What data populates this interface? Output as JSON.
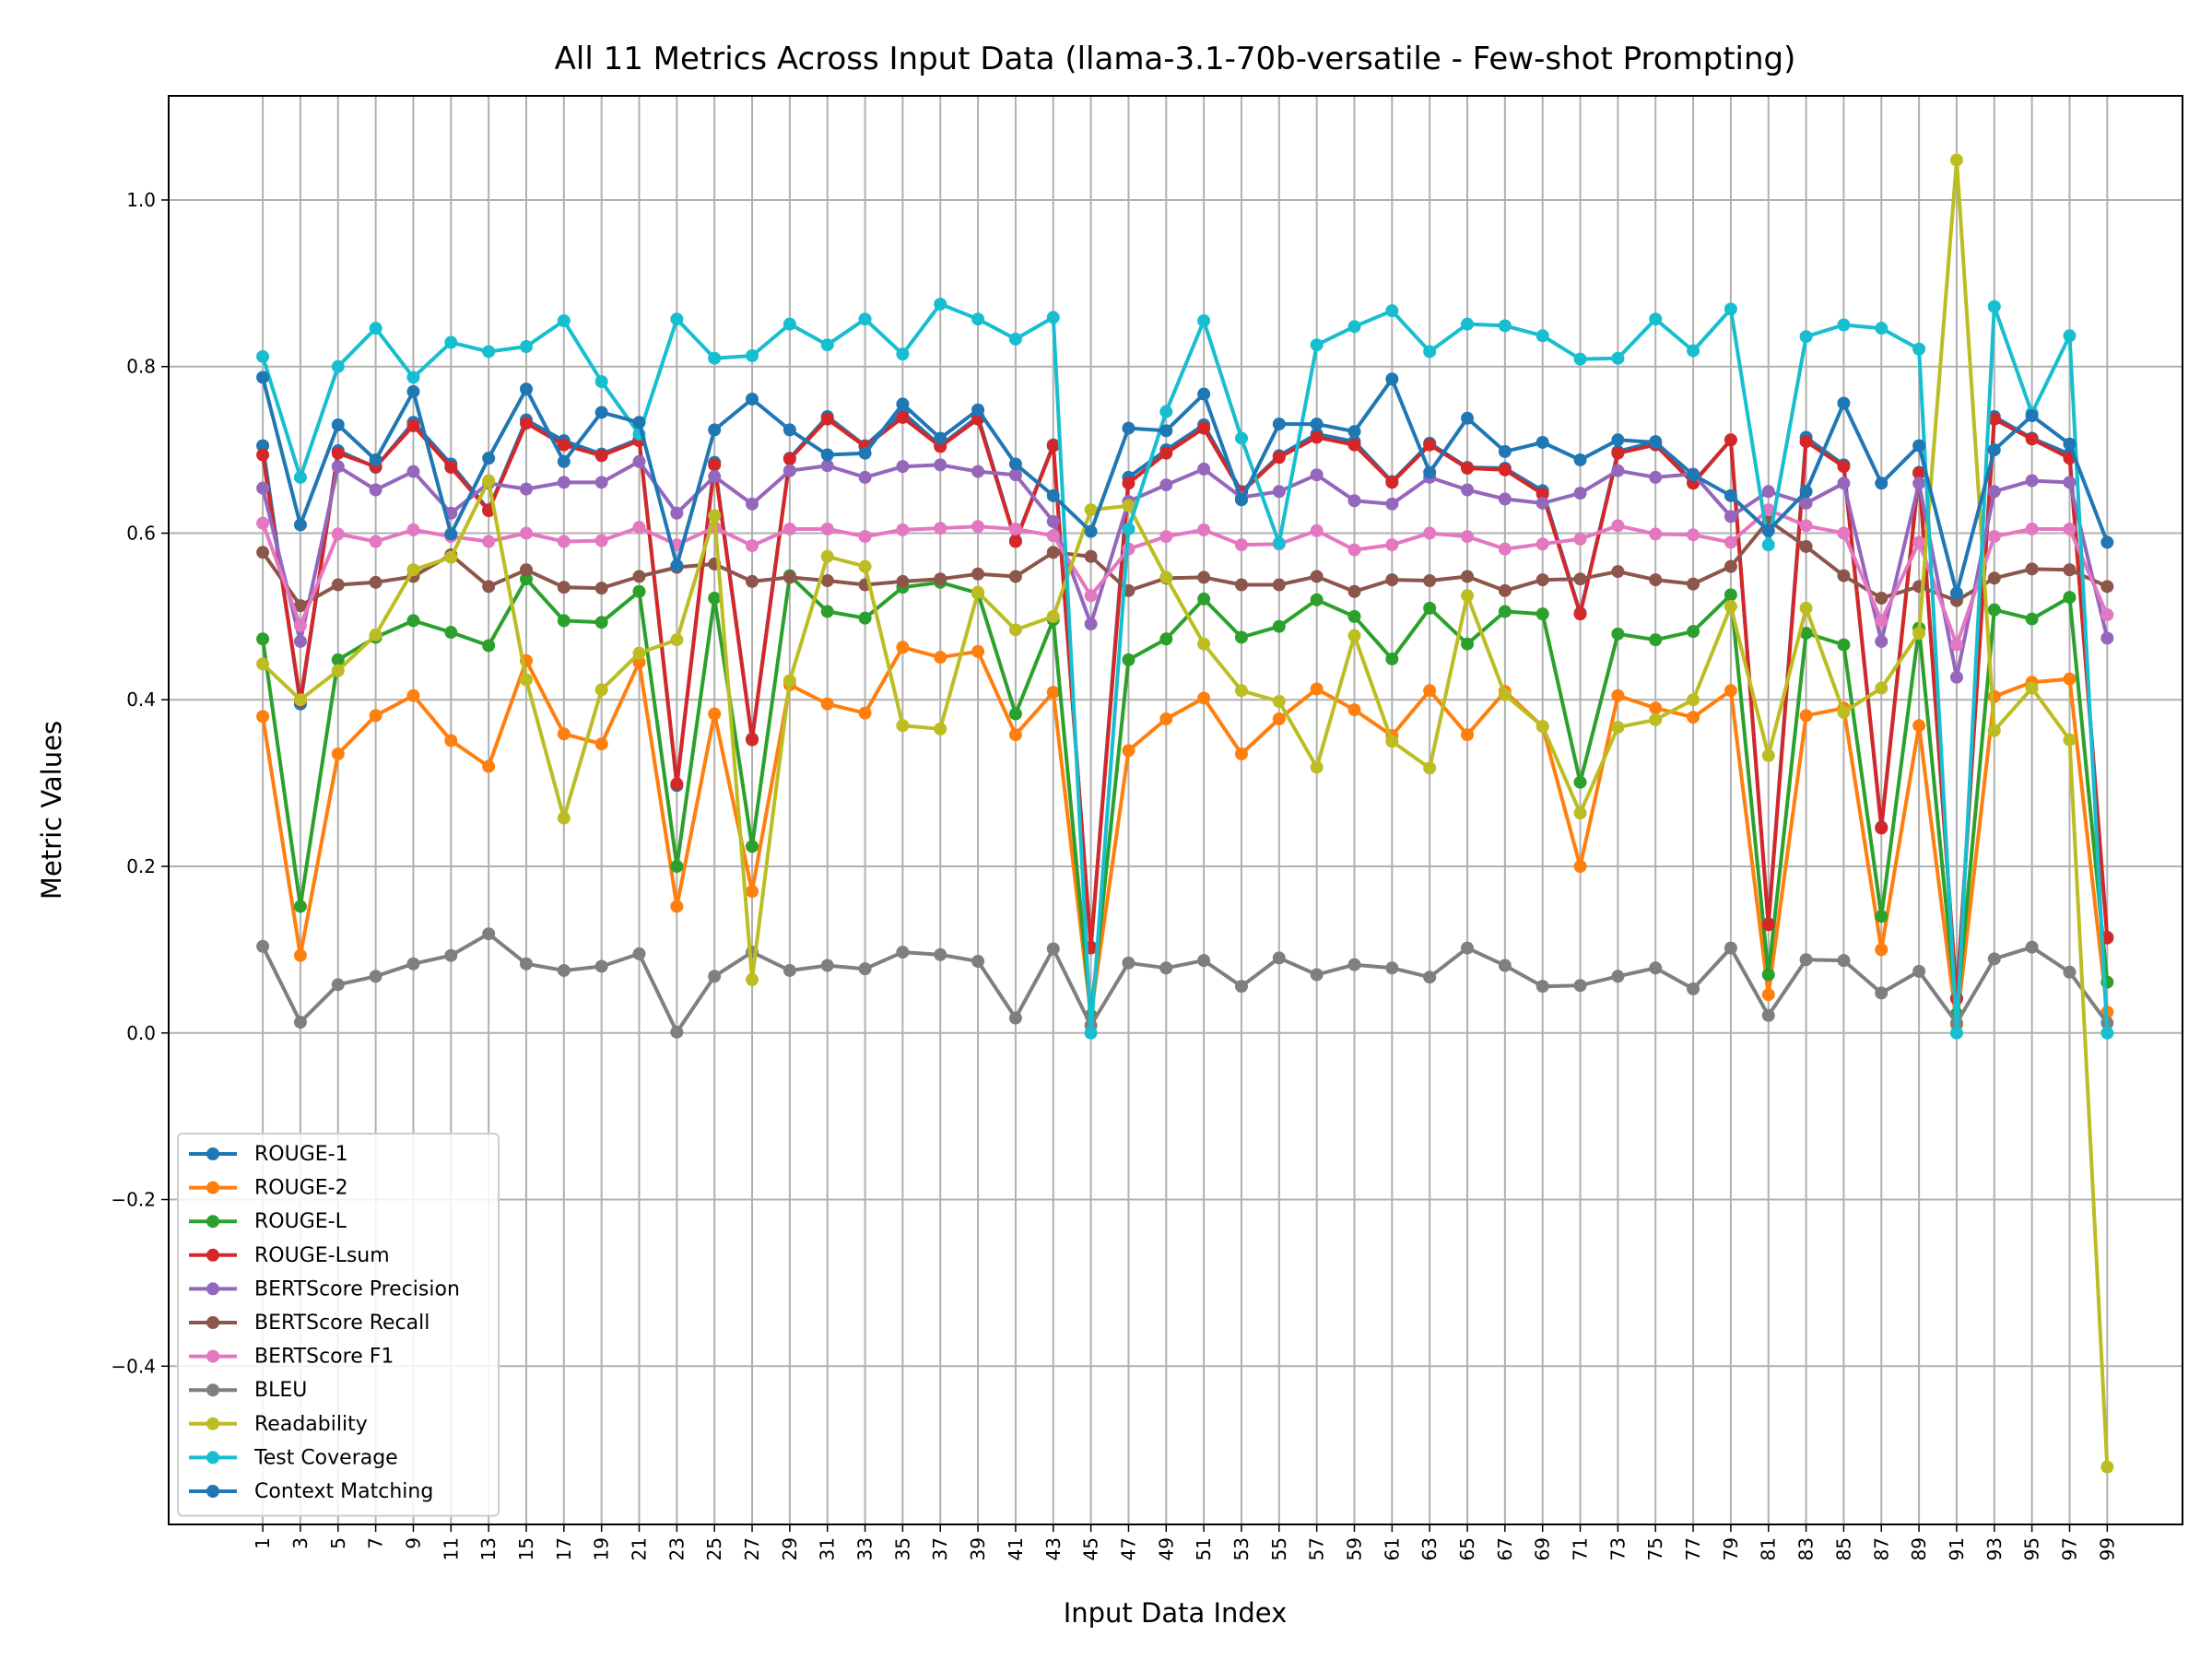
{
  "chart_data": {
    "type": "line",
    "title": "All 11 Metrics Across Input Data (llama-3.1-70b-versatile - Few-shot Prompting)",
    "xlabel": "Input Data Index",
    "ylabel": "Metric Values",
    "xlim": [
      -4,
      103
    ],
    "ylim": [
      -0.59,
      1.125
    ],
    "x_ticks": [
      1,
      3,
      5,
      7,
      9,
      11,
      13,
      15,
      17,
      19,
      21,
      23,
      25,
      27,
      29,
      31,
      33,
      35,
      37,
      39,
      41,
      43,
      45,
      47,
      49,
      51,
      53,
      55,
      57,
      59,
      61,
      63,
      65,
      67,
      69,
      71,
      73,
      75,
      77,
      79,
      81,
      83,
      85,
      87,
      89,
      91,
      93,
      95,
      97,
      99
    ],
    "y_ticks": [
      -0.4,
      -0.2,
      0.0,
      0.2,
      0.4,
      0.6,
      0.8,
      1.0
    ],
    "y_tick_labels": [
      "−0.4",
      "−0.2",
      "0.0",
      "0.2",
      "0.4",
      "0.6",
      "0.8",
      "1.0"
    ],
    "grid": true,
    "legend_position": "lower-left",
    "x": [
      1,
      3,
      5,
      7,
      9,
      11,
      13,
      15,
      17,
      19,
      21,
      23,
      25,
      27,
      29,
      31,
      33,
      35,
      37,
      39,
      41,
      43,
      45,
      47,
      49,
      51,
      53,
      55,
      57,
      59,
      61,
      63,
      65,
      67,
      69,
      71,
      73,
      75,
      77,
      79,
      81,
      83,
      85,
      87,
      89,
      91,
      93,
      95,
      97,
      99
    ],
    "series": [
      {
        "name": "ROUGE-1",
        "color": "#1f77b4",
        "values": [
          0.705,
          0.395,
          0.699,
          0.679,
          0.733,
          0.683,
          0.628,
          0.736,
          0.711,
          0.695,
          0.713,
          0.297,
          0.685,
          0.353,
          0.69,
          0.74,
          0.705,
          0.745,
          0.705,
          0.74,
          0.591,
          0.706,
          0.103,
          0.667,
          0.7,
          0.73,
          0.65,
          0.693,
          0.719,
          0.71,
          0.662,
          0.708,
          0.679,
          0.678,
          0.651,
          0.504,
          0.698,
          0.71,
          0.661,
          0.712,
          0.131,
          0.715,
          0.682,
          0.247,
          0.673,
          0.042,
          0.74,
          0.714,
          0.695,
          0.115
        ]
      },
      {
        "name": "ROUGE-2",
        "color": "#ff7f0e",
        "values": [
          0.38,
          0.093,
          0.335,
          0.381,
          0.405,
          0.351,
          0.32,
          0.447,
          0.359,
          0.347,
          0.445,
          0.152,
          0.383,
          0.17,
          0.418,
          0.395,
          0.384,
          0.463,
          0.451,
          0.458,
          0.358,
          0.409,
          0.021,
          0.339,
          0.377,
          0.402,
          0.335,
          0.377,
          0.413,
          0.388,
          0.357,
          0.411,
          0.358,
          0.41,
          0.368,
          0.2,
          0.405,
          0.39,
          0.379,
          0.411,
          0.046,
          0.381,
          0.39,
          0.1,
          0.369,
          0.01,
          0.404,
          0.421,
          0.425,
          0.025
        ]
      },
      {
        "name": "ROUGE-L",
        "color": "#2ca02c",
        "values": [
          0.473,
          0.152,
          0.448,
          0.475,
          0.495,
          0.481,
          0.465,
          0.545,
          0.495,
          0.493,
          0.53,
          0.2,
          0.522,
          0.224,
          0.549,
          0.506,
          0.498,
          0.535,
          0.541,
          0.528,
          0.383,
          0.496,
          0.021,
          0.448,
          0.473,
          0.521,
          0.475,
          0.488,
          0.52,
          0.5,
          0.449,
          0.51,
          0.467,
          0.506,
          0.503,
          0.301,
          0.479,
          0.472,
          0.482,
          0.526,
          0.07,
          0.48,
          0.466,
          0.14,
          0.486,
          0.023,
          0.508,
          0.497,
          0.523,
          0.061
        ]
      },
      {
        "name": "ROUGE-Lsum",
        "color": "#d62728",
        "values": [
          0.694,
          0.399,
          0.696,
          0.68,
          0.729,
          0.679,
          0.627,
          0.732,
          0.706,
          0.693,
          0.711,
          0.299,
          0.682,
          0.352,
          0.689,
          0.737,
          0.704,
          0.739,
          0.704,
          0.737,
          0.59,
          0.705,
          0.102,
          0.66,
          0.696,
          0.726,
          0.649,
          0.691,
          0.715,
          0.706,
          0.661,
          0.706,
          0.678,
          0.676,
          0.647,
          0.503,
          0.696,
          0.706,
          0.66,
          0.712,
          0.13,
          0.71,
          0.68,
          0.246,
          0.672,
          0.041,
          0.737,
          0.713,
          0.69,
          0.114
        ]
      },
      {
        "name": "BERTScore Precision",
        "color": "#9467bd",
        "values": [
          0.654,
          0.47,
          0.68,
          0.652,
          0.674,
          0.624,
          0.66,
          0.653,
          0.661,
          0.661,
          0.686,
          0.624,
          0.668,
          0.635,
          0.675,
          0.681,
          0.667,
          0.68,
          0.682,
          0.674,
          0.67,
          0.614,
          0.491,
          0.638,
          0.658,
          0.677,
          0.643,
          0.65,
          0.67,
          0.639,
          0.635,
          0.667,
          0.652,
          0.641,
          0.636,
          0.648,
          0.675,
          0.667,
          0.671,
          0.62,
          0.65,
          0.636,
          0.66,
          0.47,
          0.66,
          0.427,
          0.65,
          0.663,
          0.661,
          0.474
        ]
      },
      {
        "name": "BERTScore Recall",
        "color": "#8c564b",
        "values": [
          0.577,
          0.513,
          0.538,
          0.541,
          0.548,
          0.574,
          0.536,
          0.556,
          0.535,
          0.534,
          0.548,
          0.559,
          0.563,
          0.542,
          0.547,
          0.543,
          0.538,
          0.542,
          0.545,
          0.551,
          0.548,
          0.577,
          0.572,
          0.531,
          0.546,
          0.547,
          0.538,
          0.538,
          0.548,
          0.53,
          0.544,
          0.543,
          0.548,
          0.531,
          0.544,
          0.545,
          0.554,
          0.544,
          0.539,
          0.56,
          0.615,
          0.584,
          0.549,
          0.522,
          0.536,
          0.519,
          0.546,
          0.557,
          0.556,
          0.536
        ]
      },
      {
        "name": "BERTScore F1",
        "color": "#e377c2",
        "values": [
          0.612,
          0.489,
          0.599,
          0.59,
          0.604,
          0.596,
          0.59,
          0.6,
          0.59,
          0.591,
          0.607,
          0.586,
          0.607,
          0.585,
          0.605,
          0.605,
          0.596,
          0.604,
          0.606,
          0.608,
          0.605,
          0.597,
          0.525,
          0.581,
          0.596,
          0.604,
          0.586,
          0.587,
          0.603,
          0.58,
          0.586,
          0.6,
          0.596,
          0.581,
          0.587,
          0.593,
          0.609,
          0.599,
          0.598,
          0.589,
          0.628,
          0.609,
          0.6,
          0.495,
          0.589,
          0.466,
          0.596,
          0.605,
          0.605,
          0.502
        ]
      },
      {
        "name": "BLEU",
        "color": "#7f7f7f",
        "values": [
          0.104,
          0.013,
          0.058,
          0.068,
          0.083,
          0.093,
          0.119,
          0.083,
          0.075,
          0.08,
          0.095,
          0.001,
          0.068,
          0.097,
          0.075,
          0.081,
          0.077,
          0.097,
          0.094,
          0.086,
          0.018,
          0.101,
          0.009,
          0.084,
          0.078,
          0.087,
          0.056,
          0.09,
          0.07,
          0.082,
          0.078,
          0.067,
          0.102,
          0.081,
          0.056,
          0.057,
          0.068,
          0.078,
          0.053,
          0.102,
          0.021,
          0.088,
          0.087,
          0.048,
          0.074,
          0.012,
          0.089,
          0.103,
          0.073,
          0.012
        ]
      },
      {
        "name": "Readability",
        "color": "#bcbd22",
        "values": [
          0.443,
          0.4,
          0.435,
          0.478,
          0.556,
          0.571,
          0.663,
          0.424,
          0.258,
          0.412,
          0.456,
          0.472,
          0.621,
          0.064,
          0.423,
          0.572,
          0.56,
          0.369,
          0.365,
          0.529,
          0.484,
          0.5,
          0.628,
          0.633,
          0.547,
          0.467,
          0.411,
          0.398,
          0.319,
          0.477,
          0.35,
          0.318,
          0.525,
          0.406,
          0.368,
          0.264,
          0.367,
          0.376,
          0.4,
          0.512,
          0.333,
          0.51,
          0.385,
          0.414,
          0.48,
          1.048,
          0.363,
          0.414,
          0.352,
          -0.521
        ]
      },
      {
        "name": "Test Coverage",
        "color": "#17becf",
        "values": [
          0.812,
          0.667,
          0.8,
          0.846,
          0.787,
          0.829,
          0.818,
          0.824,
          0.855,
          0.782,
          0.719,
          0.857,
          0.81,
          0.813,
          0.851,
          0.826,
          0.857,
          0.815,
          0.875,
          0.857,
          0.833,
          0.859,
          0.0,
          0.605,
          0.746,
          0.855,
          0.714,
          0.588,
          0.826,
          0.848,
          0.867,
          0.818,
          0.851,
          0.849,
          0.837,
          0.809,
          0.81,
          0.857,
          0.819,
          0.869,
          0.586,
          0.836,
          0.85,
          0.846,
          0.821,
          0.0,
          0.872,
          0.744,
          0.837,
          0.0
        ]
      },
      {
        "name": "Context Matching",
        "color": "#1f77b4",
        "values": [
          0.787,
          0.61,
          0.73,
          0.688,
          0.77,
          0.599,
          0.69,
          0.773,
          0.686,
          0.745,
          0.733,
          0.561,
          0.724,
          0.761,
          0.724,
          0.694,
          0.696,
          0.755,
          0.714,
          0.748,
          0.683,
          0.645,
          0.602,
          0.726,
          0.723,
          0.767,
          0.64,
          0.731,
          0.731,
          0.722,
          0.785,
          0.673,
          0.738,
          0.698,
          0.709,
          0.688,
          0.712,
          0.709,
          0.67,
          0.645,
          0.603,
          0.65,
          0.756,
          0.66,
          0.705,
          0.528,
          0.7,
          0.741,
          0.707,
          0.589
        ]
      }
    ]
  }
}
